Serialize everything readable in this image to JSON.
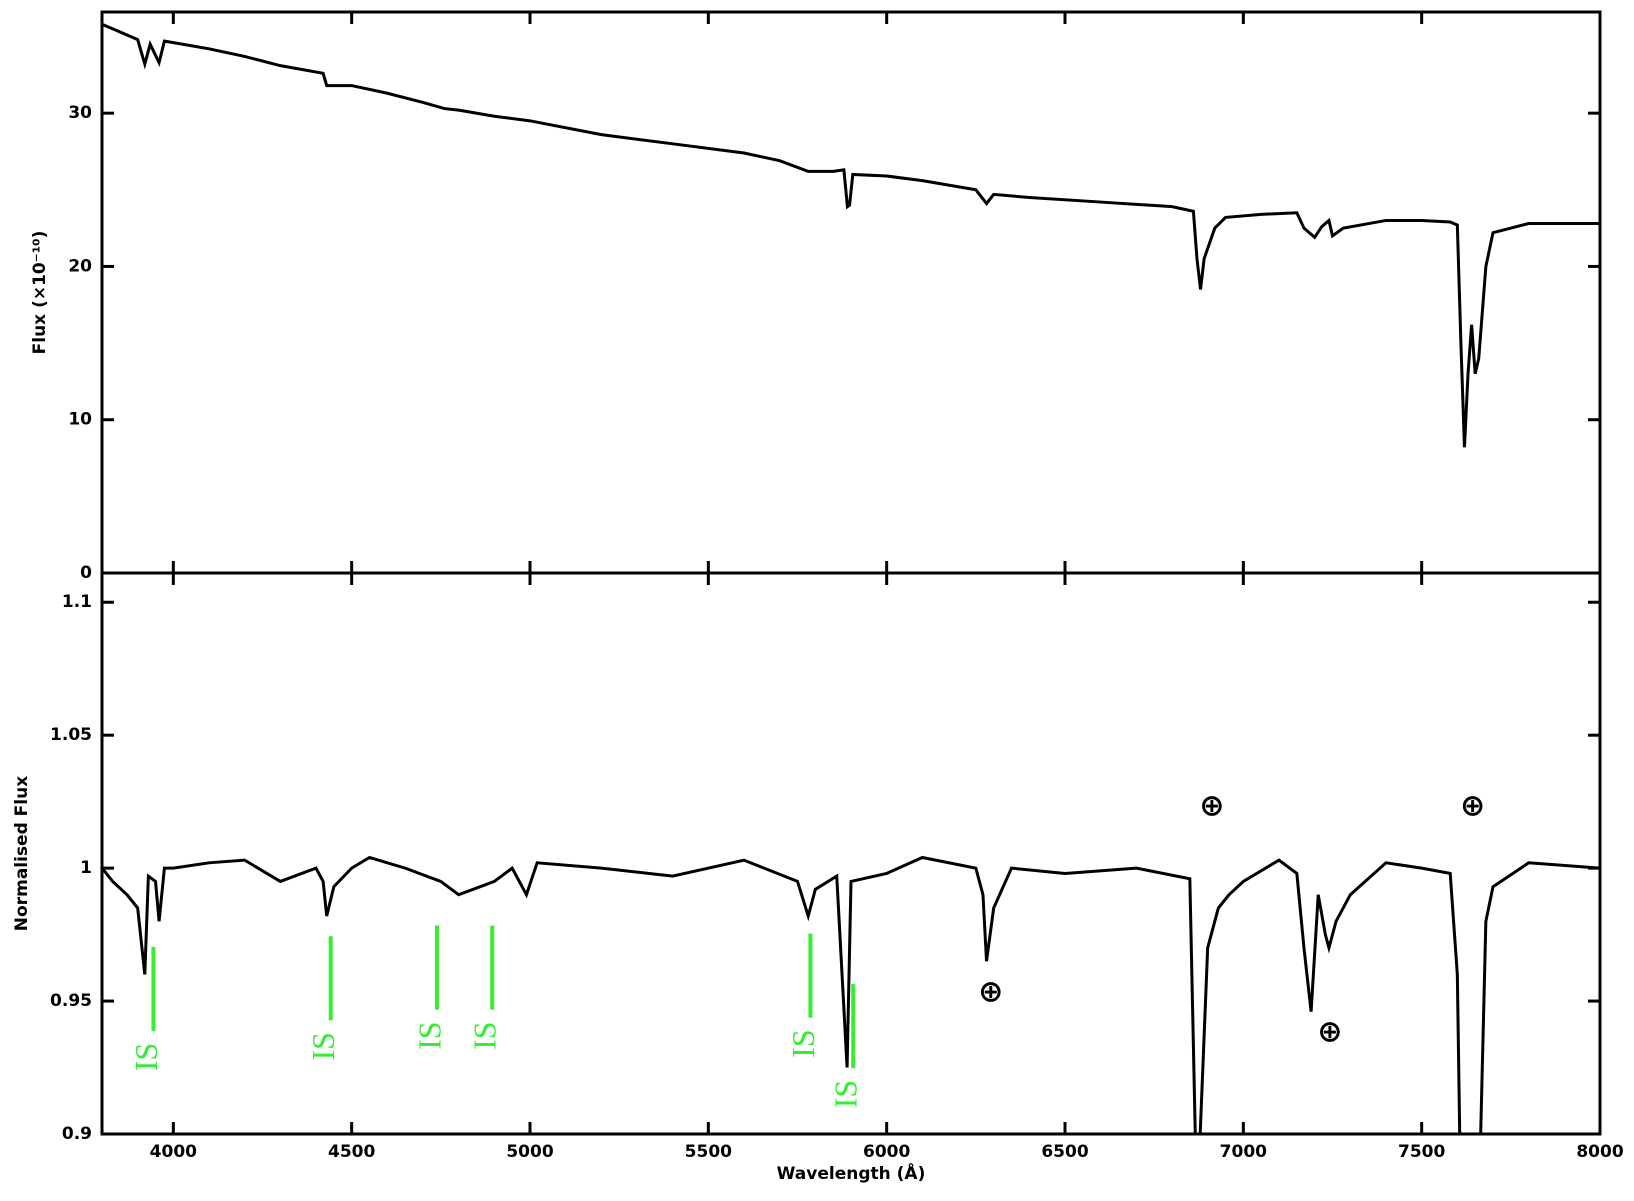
{
  "chart_data": [
    {
      "type": "line",
      "y_label": "Flux (×10⁻¹⁰)",
      "xlim": [
        3800,
        8000
      ],
      "ylim": [
        0,
        36.6
      ],
      "xticks": [
        4000,
        4500,
        5000,
        5500,
        6000,
        6500,
        7000,
        7500,
        8000
      ],
      "yticks": [
        0,
        10,
        20,
        30
      ],
      "series": [
        {
          "color": "#000000",
          "x": [
            3800,
            3850,
            3900,
            3920,
            3935,
            3960,
            3975,
            4000,
            4100,
            4200,
            4300,
            4420,
            4430,
            4500,
            4600,
            4700,
            4760,
            4800,
            4900,
            5000,
            5200,
            5400,
            5600,
            5700,
            5780,
            5850,
            5880,
            5890,
            5896,
            5905,
            6000,
            6100,
            6250,
            6280,
            6300,
            6400,
            6600,
            6800,
            6860,
            6870,
            6880,
            6890,
            6920,
            6950,
            7050,
            7150,
            7170,
            7200,
            7220,
            7240,
            7250,
            7280,
            7400,
            7500,
            7580,
            7600,
            7610,
            7620,
            7630,
            7640,
            7650,
            7660,
            7680,
            7700,
            7800,
            8000
          ],
          "values": [
            35.8,
            35.3,
            34.8,
            33.2,
            34.5,
            33.3,
            34.7,
            34.6,
            34.2,
            33.7,
            33.1,
            32.6,
            31.8,
            31.8,
            31.3,
            30.7,
            30.3,
            30.2,
            29.8,
            29.5,
            28.6,
            28.0,
            27.4,
            26.9,
            26.2,
            26.2,
            26.3,
            23.9,
            24.0,
            26.0,
            25.9,
            25.6,
            25.0,
            24.1,
            24.7,
            24.5,
            24.2,
            23.9,
            23.6,
            20.5,
            18.5,
            20.5,
            22.5,
            23.2,
            23.4,
            23.5,
            22.5,
            21.9,
            22.6,
            23.0,
            22.0,
            22.5,
            23.0,
            23.0,
            22.9,
            22.7,
            15,
            8.2,
            13,
            16.2,
            13,
            14,
            20,
            22.2,
            22.8,
            22.8
          ]
        }
      ]
    },
    {
      "type": "line",
      "x_label": "Wavelength (Å)",
      "y_label": "Normalised Flux",
      "xlim": [
        3800,
        8000
      ],
      "ylim": [
        0.9,
        1.111
      ],
      "xticks": [
        4000,
        4500,
        5000,
        5500,
        6000,
        6500,
        7000,
        7500,
        8000
      ],
      "yticks": [
        0.9,
        0.95,
        1,
        1.05,
        1.1
      ],
      "series": [
        {
          "color": "#000000",
          "x": [
            3800,
            3830,
            3870,
            3900,
            3920,
            3930,
            3950,
            3960,
            3975,
            4000,
            4100,
            4200,
            4300,
            4400,
            4420,
            4430,
            4450,
            4500,
            4550,
            4650,
            4750,
            4800,
            4900,
            4950,
            4990,
            5020,
            5200,
            5400,
            5600,
            5750,
            5780,
            5800,
            5860,
            5889,
            5900,
            6000,
            6100,
            6250,
            6270,
            6280,
            6300,
            6350,
            6500,
            6700,
            6850,
            6870,
            6900,
            6930,
            6960,
            7000,
            7100,
            7150,
            7170,
            7190,
            7210,
            7230,
            7240,
            7260,
            7300,
            7400,
            7500,
            7580,
            7600,
            7610,
            7660,
            7680,
            7700,
            7800,
            8000
          ],
          "values": [
            1.0,
            0.995,
            0.99,
            0.985,
            0.96,
            0.997,
            0.995,
            0.98,
            1.0,
            1.0,
            1.002,
            1.003,
            0.995,
            1.0,
            0.995,
            0.982,
            0.993,
            1.0,
            1.004,
            1.0,
            0.995,
            0.99,
            0.995,
            1.0,
            0.99,
            1.002,
            1.0,
            0.997,
            1.003,
            0.995,
            0.982,
            0.992,
            0.997,
            0.925,
            0.995,
            0.998,
            1.004,
            1.0,
            0.99,
            0.965,
            0.985,
            1.0,
            0.998,
            1.0,
            0.996,
            0.87,
            0.97,
            0.985,
            0.99,
            0.995,
            1.003,
            0.998,
            0.97,
            0.946,
            0.99,
            0.975,
            0.97,
            0.98,
            0.99,
            1.002,
            1.0,
            0.998,
            0.96,
            0.87,
            0.87,
            0.98,
            0.993,
            1.002,
            1.0
          ]
        }
      ],
      "annotations": [
        {
          "text": "IS",
          "x": 3933,
          "y": 0.929,
          "color": "#33ee33"
        },
        {
          "text": "IS",
          "x": 4430,
          "y": 0.933,
          "color": "#33ee33"
        },
        {
          "text": "IS",
          "x": 4728,
          "y": 0.937,
          "color": "#33ee33"
        },
        {
          "text": "IS",
          "x": 4883,
          "y": 0.937,
          "color": "#33ee33"
        },
        {
          "text": "IS",
          "x": 5775,
          "y": 0.934,
          "color": "#33ee33"
        },
        {
          "text": "IS",
          "x": 5895,
          "y": 0.915,
          "color": "#33ee33"
        },
        {
          "text": "⊕",
          "x": 6292,
          "y": 0.953,
          "color": "#000000"
        },
        {
          "text": "⊕",
          "x": 6912,
          "y": 1.023,
          "color": "#000000"
        },
        {
          "text": "⊕",
          "x": 7243,
          "y": 0.938,
          "color": "#000000"
        },
        {
          "text": "⊕",
          "x": 7643,
          "y": 1.023,
          "color": "#000000"
        }
      ]
    }
  ]
}
